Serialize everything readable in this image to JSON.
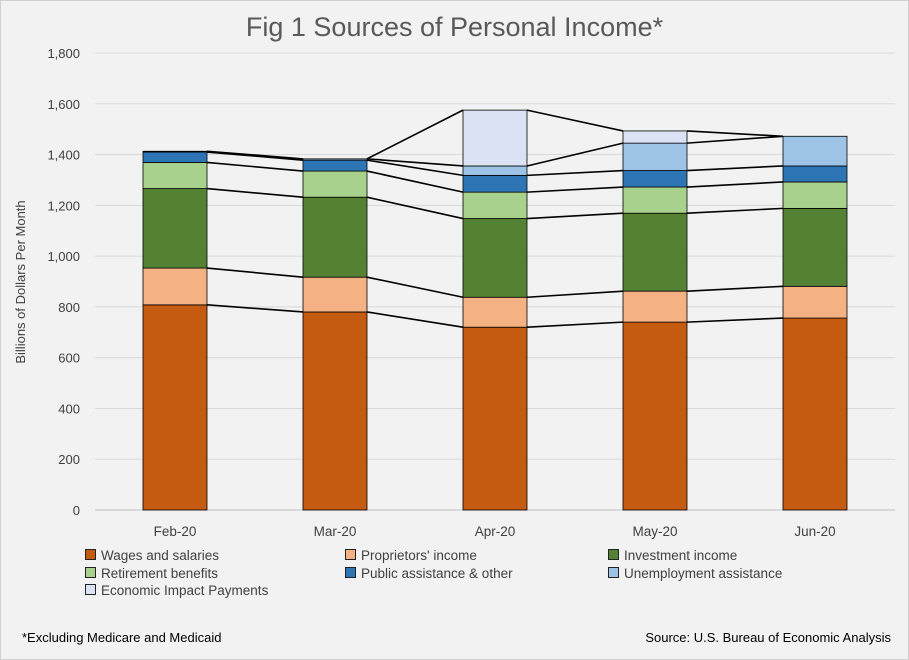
{
  "chart_data": {
    "type": "bar",
    "stacked": true,
    "title": "Fig 1 Sources of Personal Income*",
    "xlabel": "",
    "ylabel": "Billions of Dollars Per Month",
    "ylim": [
      0,
      1800
    ],
    "ytick_step": 200,
    "ytick_labels": [
      "0",
      "200",
      "400",
      "600",
      "800",
      "1,000",
      "1,200",
      "1,400",
      "1,600",
      "1,800"
    ],
    "grid": true,
    "legend_position": "bottom",
    "categories": [
      "Feb-20",
      "Mar-20",
      "Apr-20",
      "May-20",
      "Jun-20"
    ],
    "series": [
      {
        "name": "Wages and salaries",
        "color": "#c55a11",
        "values": [
          808,
          780,
          720,
          740,
          756
        ]
      },
      {
        "name": "Proprietors' income",
        "color": "#f4b183",
        "values": [
          145,
          137,
          118,
          122,
          125
        ]
      },
      {
        "name": "Investment income",
        "color": "#548235",
        "values": [
          313,
          315,
          310,
          307,
          307
        ]
      },
      {
        "name": "Retirement benefits",
        "color": "#a9d18e",
        "values": [
          103,
          103,
          104,
          103,
          104
        ]
      },
      {
        "name": "Public assistance & other",
        "color": "#2e75b6",
        "values": [
          41,
          43,
          66,
          65,
          63
        ]
      },
      {
        "name": "Unemployment assistance",
        "color": "#9dc3e6",
        "values": [
          3,
          5,
          37,
          108,
          117
        ]
      },
      {
        "name": "Economic Impact Payments",
        "color": "#dae3f3",
        "values": [
          0,
          0,
          220,
          48,
          0
        ]
      }
    ]
  },
  "footnote": "*Excluding Medicare and Medicaid",
  "source": "Source: U.S. Bureau of Economic Analysis"
}
